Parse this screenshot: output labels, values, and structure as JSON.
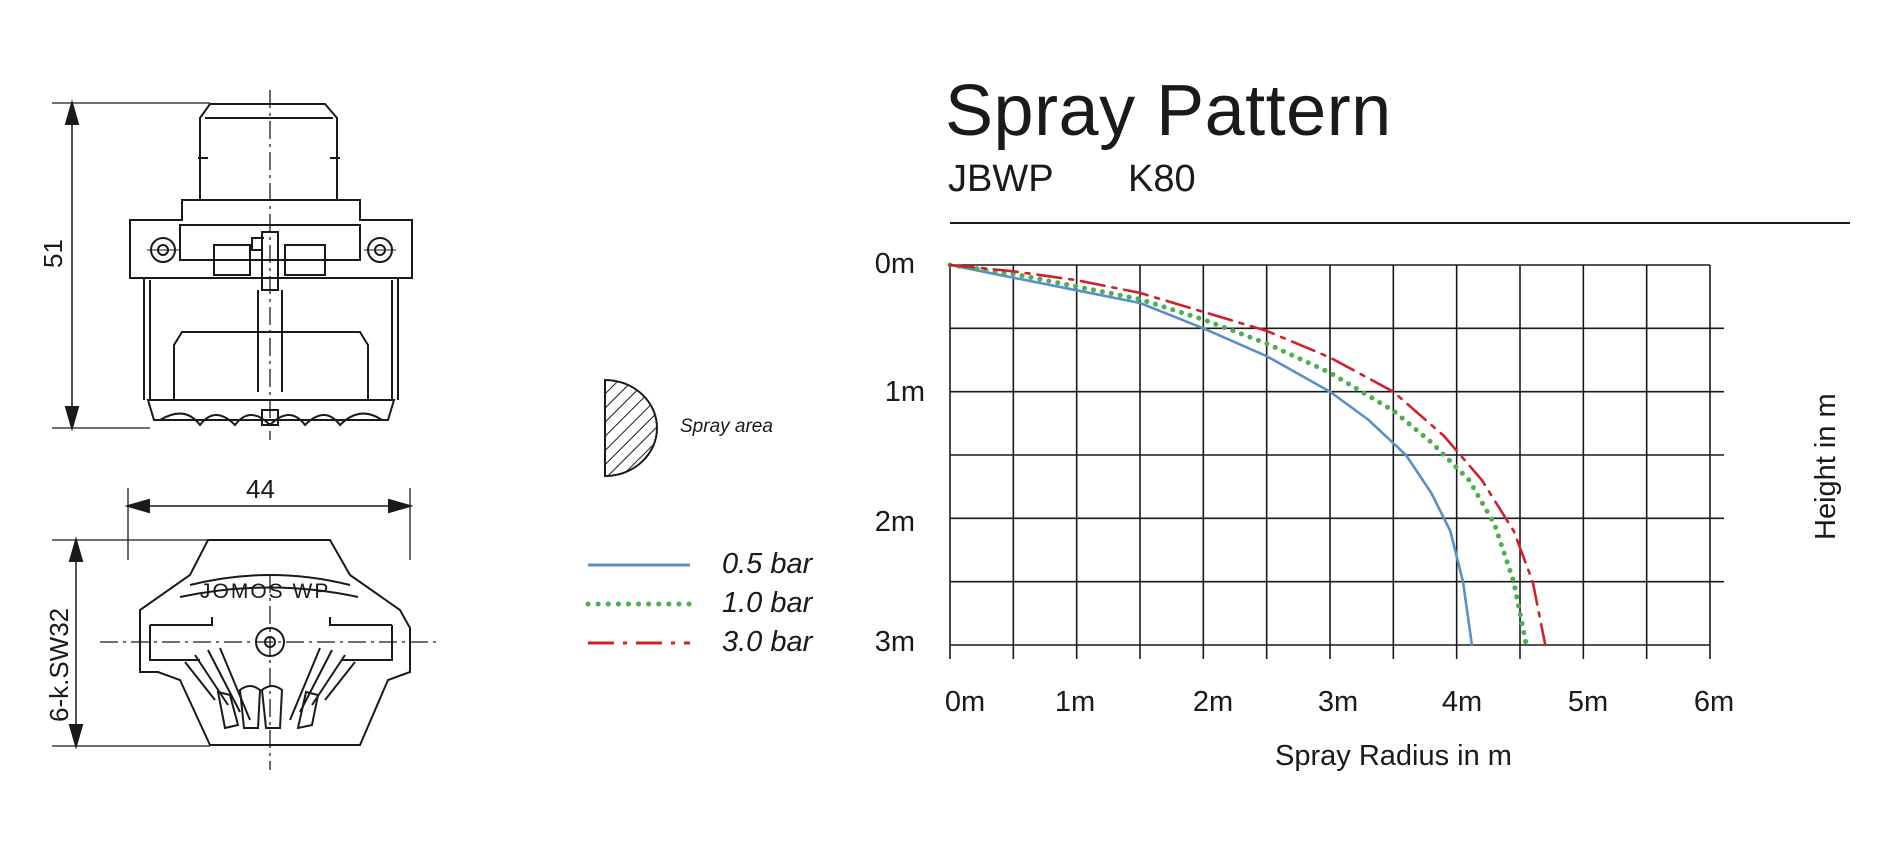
{
  "chart_data": {
    "type": "line",
    "title": "Spray Pattern",
    "subtitle": [
      "JBWP",
      "K80"
    ],
    "xlabel": "Spray Radius in m",
    "ylabel": "Height in m",
    "x_ticks": [
      "0m",
      "1m",
      "2m",
      "3m",
      "4m",
      "5m",
      "6m"
    ],
    "y_ticks": [
      "0m",
      "1m",
      "2m",
      "3m"
    ],
    "xlim": [
      0,
      6
    ],
    "ylim": [
      0,
      3
    ],
    "y_inverted": true,
    "grid": true,
    "grid_step": 0.5,
    "legend_position": "left",
    "series": [
      {
        "name": "0.5 bar",
        "color": "#5b8fc9",
        "style": "solid",
        "x": [
          0,
          0.5,
          1.0,
          1.5,
          2.0,
          2.5,
          3.0,
          3.3,
          3.6,
          3.8,
          3.95,
          4.05,
          4.12
        ],
        "y": [
          0,
          0.1,
          0.2,
          0.3,
          0.5,
          0.72,
          1.0,
          1.22,
          1.5,
          1.8,
          2.1,
          2.5,
          3.0
        ]
      },
      {
        "name": "1.0 bar",
        "color": "#4caf50",
        "style": "dotted",
        "x": [
          0,
          0.5,
          1.0,
          1.5,
          2.0,
          2.5,
          3.0,
          3.5,
          3.8,
          4.1,
          4.3,
          4.45,
          4.55
        ],
        "y": [
          0,
          0.07,
          0.17,
          0.27,
          0.43,
          0.62,
          0.85,
          1.15,
          1.4,
          1.7,
          2.05,
          2.5,
          3.0
        ]
      },
      {
        "name": "3.0 bar",
        "color": "#d0202e",
        "style": "dashdot",
        "x": [
          0,
          0.5,
          1.0,
          1.5,
          2.0,
          2.5,
          3.0,
          3.5,
          3.9,
          4.2,
          4.45,
          4.6,
          4.7
        ],
        "y": [
          0,
          0.05,
          0.12,
          0.22,
          0.37,
          0.52,
          0.73,
          1.0,
          1.35,
          1.7,
          2.1,
          2.5,
          3.0
        ]
      }
    ]
  },
  "legend": {
    "spray_area_label": "Spray area",
    "items": [
      "0.5 bar",
      "1.0 bar",
      "3.0 bar"
    ]
  },
  "drawing": {
    "height_dim": "51",
    "width_dim": "44",
    "hex_dim": "6-k.SW32",
    "logo_text": "JOMOS WP"
  }
}
